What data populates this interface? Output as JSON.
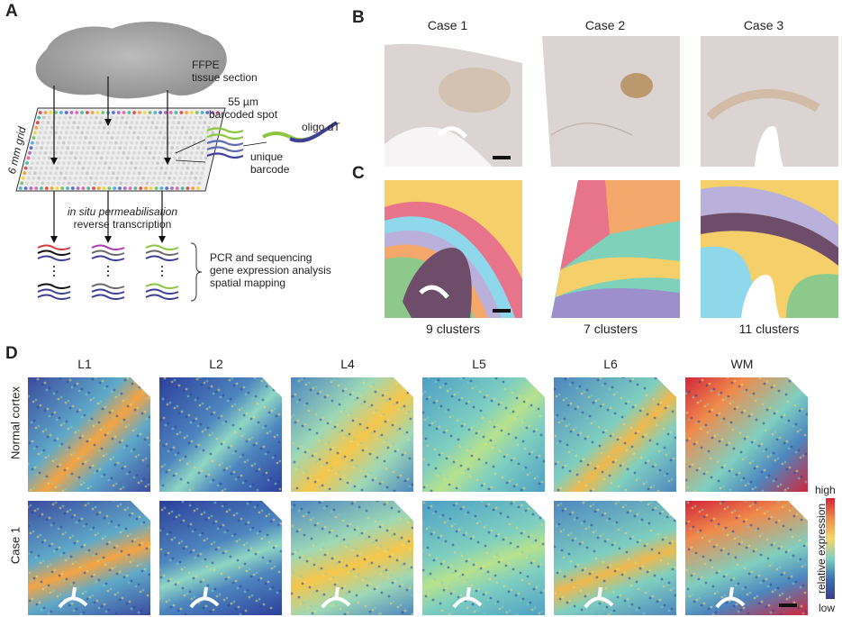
{
  "figure": {
    "panel_labels": [
      "A",
      "B",
      "C",
      "D"
    ],
    "panel_a": {
      "tissue_label": [
        "FFPE",
        "tissue section"
      ],
      "grid_label": "6 mm grid",
      "spot_label": [
        "55 µm",
        "barcoded spot"
      ],
      "oligo_label": "oligo dT",
      "barcode_label": [
        "unique",
        "barcode"
      ],
      "permeabilisation_label": [
        "in situ permeabilisation",
        "reverse transcription"
      ],
      "analysis_label": [
        "PCR and sequencing",
        "gene expression analysis",
        "spatial mapping"
      ]
    },
    "panel_b": {
      "cases": [
        "Case 1",
        "Case 2",
        "Case 3"
      ]
    },
    "panel_c": {
      "clusters": [
        "9 clusters",
        "7 clusters",
        "11 clusters"
      ]
    },
    "panel_d": {
      "columns": [
        "L1",
        "L2",
        "L4",
        "L5",
        "L6",
        "WM"
      ],
      "rows": [
        "Normal cortex",
        "Case 1"
      ],
      "colorbar": {
        "high": "high",
        "low": "low",
        "title": "relative expression"
      }
    },
    "colors": {
      "tissue_b": "#d9d2cf",
      "stain": "#b9874a",
      "spectral_low": "#2c3f9c",
      "spectral_mid": "#7fcfc0",
      "spectral_high": "#d2253a"
    }
  }
}
